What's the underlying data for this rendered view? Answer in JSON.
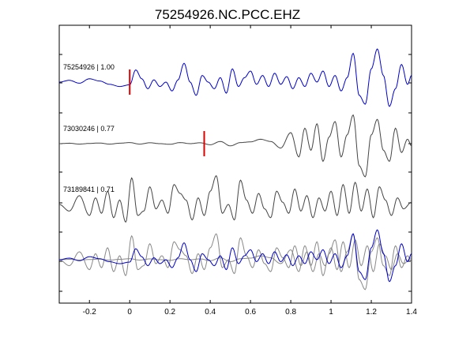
{
  "chart_data": {
    "type": "line",
    "title": "75254926.NC.PCC.EHZ",
    "xlabel": "",
    "ylabel": "",
    "xlim": [
      -0.35,
      1.4
    ],
    "x_ticks": [
      -0.2,
      0,
      0.2,
      0.4,
      0.6,
      0.8,
      1,
      1.2,
      1.4
    ],
    "x_tick_labels": [
      "-0.2",
      "0",
      "0.2",
      "0.4",
      "0.6",
      "0.8",
      "1",
      "1.2",
      "1.4"
    ],
    "grid": false,
    "colors": {
      "main": "#0000cc",
      "other": "#444444",
      "overlay_other": "#888888",
      "pick": "#dd0000"
    },
    "traces": [
      {
        "label": "75254926 | 1.00",
        "color": "main",
        "pick": 0.0,
        "x": [
          -0.35,
          -0.3,
          -0.25,
          -0.2,
          -0.15,
          -0.1,
          -0.05,
          0,
          0.03,
          0.06,
          0.09,
          0.12,
          0.15,
          0.18,
          0.21,
          0.24,
          0.27,
          0.3,
          0.33,
          0.36,
          0.39,
          0.42,
          0.45,
          0.48,
          0.51,
          0.54,
          0.57,
          0.6,
          0.63,
          0.66,
          0.69,
          0.72,
          0.75,
          0.78,
          0.81,
          0.84,
          0.87,
          0.9,
          0.93,
          0.96,
          0.99,
          1.02,
          1.05,
          1.08,
          1.11,
          1.14,
          1.17,
          1.2,
          1.23,
          1.26,
          1.29,
          1.32,
          1.35,
          1.38,
          1.4
        ],
        "y": [
          0,
          0.08,
          -0.05,
          0.15,
          0.05,
          -0.1,
          -0.2,
          -0.12,
          0.55,
          0.15,
          -0.3,
          0.1,
          -0.2,
          0.0,
          -0.4,
          0.1,
          0.85,
          0.0,
          -0.6,
          0.3,
          0.0,
          -0.3,
          0.2,
          -0.5,
          0.6,
          -0.2,
          0.2,
          0.5,
          -0.1,
          0.3,
          -0.2,
          0.4,
          -0.1,
          0.25,
          -0.3,
          0.2,
          -0.2,
          0.4,
          0.0,
          0.5,
          -0.2,
          0.3,
          -0.4,
          0.2,
          1.3,
          -0.6,
          -1.0,
          0.6,
          1.5,
          0.3,
          -1.1,
          -0.3,
          0.8,
          -0.1,
          0.3
        ]
      },
      {
        "label": "73030246 | 0.77",
        "color": "other",
        "pick": 0.37,
        "x": [
          -0.35,
          -0.3,
          -0.25,
          -0.2,
          -0.15,
          -0.1,
          -0.05,
          0,
          0.05,
          0.1,
          0.15,
          0.2,
          0.25,
          0.3,
          0.35,
          0.4,
          0.45,
          0.5,
          0.55,
          0.6,
          0.65,
          0.7,
          0.75,
          0.8,
          0.84,
          0.87,
          0.9,
          0.93,
          0.96,
          0.99,
          1.02,
          1.05,
          1.08,
          1.11,
          1.14,
          1.17,
          1.2,
          1.23,
          1.26,
          1.29,
          1.32,
          1.35,
          1.38,
          1.4
        ],
        "y": [
          0,
          0.02,
          -0.02,
          0.01,
          0.03,
          -0.02,
          0.02,
          0.05,
          -0.02,
          0.04,
          0.0,
          -0.03,
          0.05,
          0.0,
          0.04,
          -0.05,
          0.1,
          -0.1,
          0.05,
          0.08,
          0.2,
          0.1,
          -0.2,
          0.5,
          -0.6,
          0.7,
          -0.3,
          0.9,
          -0.8,
          0.3,
          1.0,
          -0.6,
          0.4,
          1.3,
          -1.0,
          -1.5,
          0.4,
          1.1,
          -0.3,
          -0.8,
          0.7,
          -0.4,
          0.2,
          -0.1
        ]
      },
      {
        "label": "73189841 | 0.71",
        "color": "other",
        "pick": null,
        "x": [
          -0.35,
          -0.3,
          -0.25,
          -0.2,
          -0.17,
          -0.14,
          -0.11,
          -0.08,
          -0.05,
          -0.02,
          0.01,
          0.04,
          0.07,
          0.1,
          0.13,
          0.16,
          0.19,
          0.22,
          0.25,
          0.28,
          0.31,
          0.34,
          0.37,
          0.4,
          0.43,
          0.46,
          0.49,
          0.52,
          0.55,
          0.58,
          0.61,
          0.64,
          0.67,
          0.7,
          0.73,
          0.76,
          0.79,
          0.82,
          0.85,
          0.88,
          0.91,
          0.94,
          0.97,
          1.0,
          1.03,
          1.06,
          1.09,
          1.12,
          1.15,
          1.18,
          1.21,
          1.24,
          1.27,
          1.3,
          1.33,
          1.36,
          1.4
        ],
        "y": [
          0,
          -0.3,
          0.4,
          -0.5,
          0.3,
          -0.4,
          0.6,
          -0.6,
          0.2,
          -0.8,
          1.2,
          -0.5,
          -0.3,
          0.8,
          -0.2,
          0.2,
          -0.4,
          0.9,
          0.5,
          0.2,
          -0.7,
          0.3,
          -0.5,
          0.6,
          1.3,
          -0.4,
          0.0,
          -0.7,
          1.1,
          0.2,
          -0.4,
          0.5,
          -0.2,
          -0.6,
          0.6,
          0.1,
          -0.4,
          0.7,
          -0.3,
          0.4,
          -0.6,
          0.3,
          -0.3,
          0.6,
          -0.5,
          0.9,
          -0.4,
          1.0,
          -0.3,
          0.7,
          -0.6,
          0.8,
          0.2,
          -0.5,
          0.3,
          -0.2,
          0.1
        ]
      },
      {
        "label": "",
        "color": "overlay",
        "pick": null,
        "x": [],
        "y": []
      }
    ]
  }
}
